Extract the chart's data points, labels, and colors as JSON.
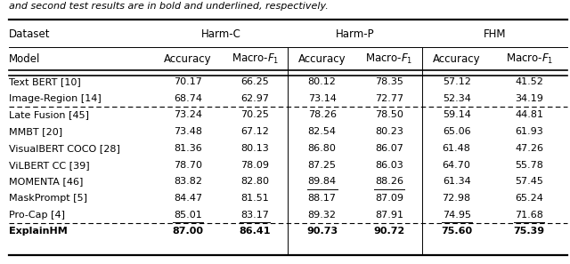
{
  "caption": "and second test results are in bold and underlined, respectively.",
  "rows": [
    {
      "model": "Text BERT [10]",
      "data": [
        "70.17",
        "66.25",
        "80.12",
        "78.35",
        "57.12",
        "41.52"
      ],
      "dashed_below": false,
      "bold": false,
      "underline": [],
      "smallcaps": false
    },
    {
      "model": "Image-Region [14]",
      "data": [
        "68.74",
        "62.97",
        "73.14",
        "72.77",
        "52.34",
        "34.19"
      ],
      "dashed_below": true,
      "bold": false,
      "underline": [],
      "smallcaps": false
    },
    {
      "model": "Late Fusion [45]",
      "data": [
        "73.24",
        "70.25",
        "78.26",
        "78.50",
        "59.14",
        "44.81"
      ],
      "dashed_below": false,
      "bold": false,
      "underline": [],
      "smallcaps": false
    },
    {
      "model": "MMBT [20]",
      "data": [
        "73.48",
        "67.12",
        "82.54",
        "80.23",
        "65.06",
        "61.93"
      ],
      "dashed_below": false,
      "bold": false,
      "underline": [],
      "smallcaps": false
    },
    {
      "model": "VisualBERT COCO [28]",
      "data": [
        "81.36",
        "80.13",
        "86.80",
        "86.07",
        "61.48",
        "47.26"
      ],
      "dashed_below": false,
      "bold": false,
      "underline": [],
      "smallcaps": false
    },
    {
      "model": "ViLBERT CC [39]",
      "data": [
        "78.70",
        "78.09",
        "87.25",
        "86.03",
        "64.70",
        "55.78"
      ],
      "dashed_below": false,
      "bold": false,
      "underline": [],
      "smallcaps": false
    },
    {
      "model": "MOMENTA [46]",
      "data": [
        "83.82",
        "82.80",
        "89.84",
        "88.26",
        "61.34",
        "57.45"
      ],
      "dashed_below": false,
      "bold": false,
      "underline": [
        2,
        3
      ],
      "smallcaps": false
    },
    {
      "model": "MaskPrompt [5]",
      "data": [
        "84.47",
        "81.51",
        "88.17",
        "87.09",
        "72.98",
        "65.24"
      ],
      "dashed_below": false,
      "bold": false,
      "underline": [],
      "smallcaps": false
    },
    {
      "model": "Pro-Cap [4]",
      "data": [
        "85.01",
        "83.17",
        "89.32",
        "87.91",
        "74.95",
        "71.68"
      ],
      "dashed_below": true,
      "bold": false,
      "underline": [
        0,
        1,
        4,
        5
      ],
      "smallcaps": false
    },
    {
      "model": "ExplainHM",
      "data": [
        "87.00",
        "86.41",
        "90.73",
        "90.72",
        "75.60",
        "75.39"
      ],
      "dashed_below": false,
      "bold": true,
      "underline": [],
      "smallcaps": true
    }
  ],
  "font_size": 8.0,
  "header_font_size": 8.5,
  "caption_font_size": 8.0,
  "bg_color": "#ffffff",
  "text_color": "#000000"
}
